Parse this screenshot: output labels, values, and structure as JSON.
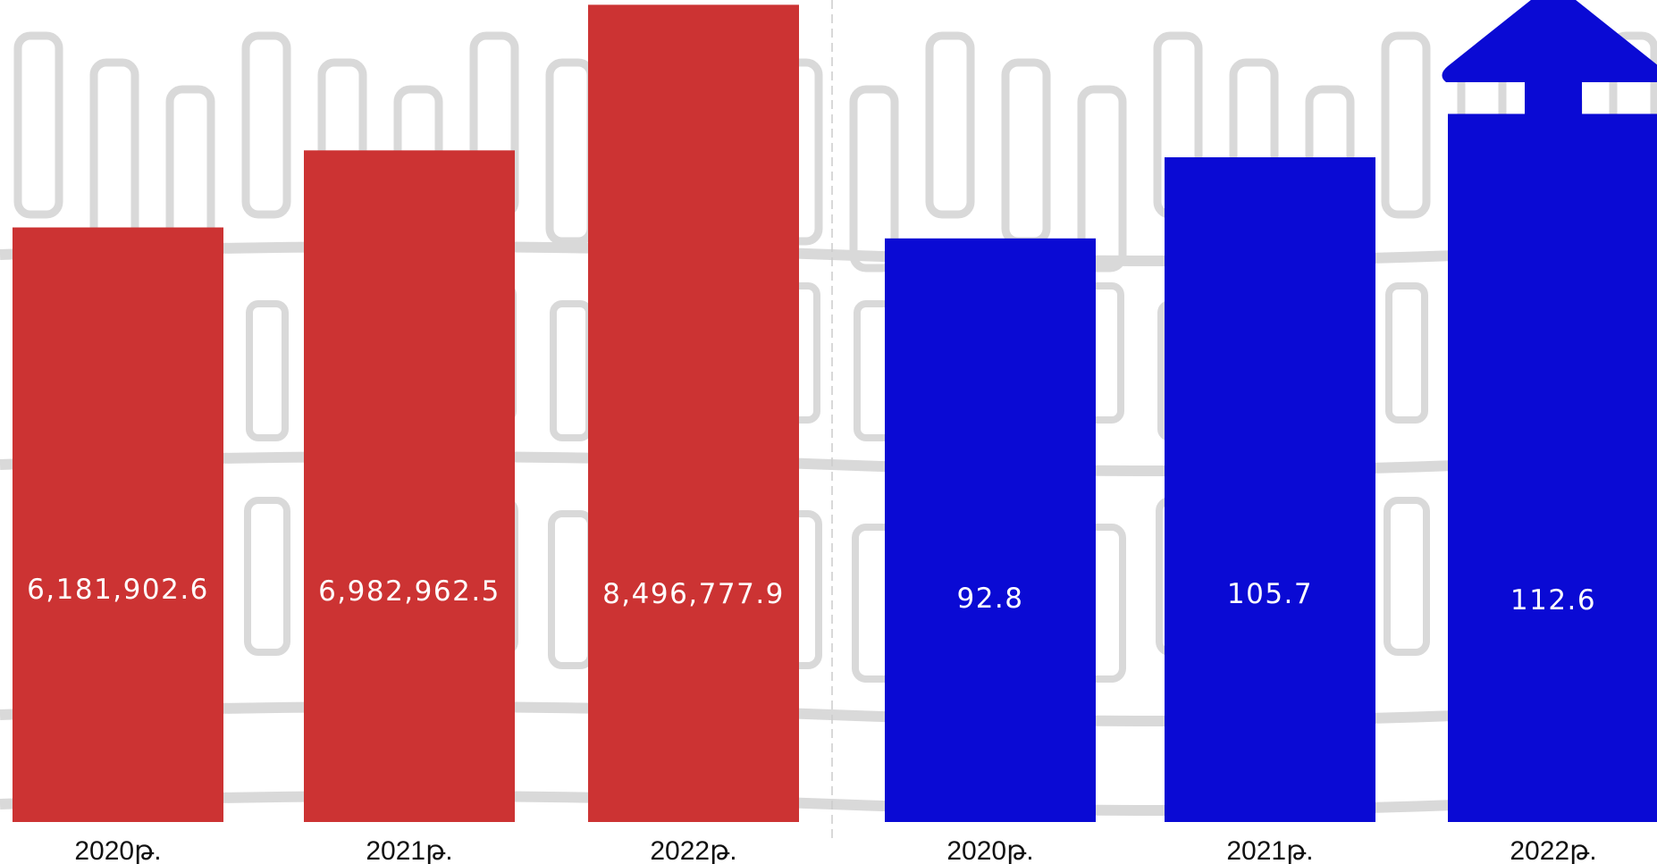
{
  "colors": {
    "left_bars": "#cc3333",
    "right_bars": "#0a0ad4",
    "bar_text": "#ffffff",
    "tick_text": "#111111",
    "background_sketch": "#d9d9d9"
  },
  "chart_data": [
    {
      "type": "bar",
      "categories": [
        "2020թ.",
        "2021թ.",
        "2022թ."
      ],
      "values": [
        6181902.6,
        6982962.5,
        8496777.9
      ],
      "value_labels": [
        "6,181,902.6",
        "6,982,962.5",
        "8,496,777.9"
      ],
      "color": "#cc3333",
      "ylim": [
        0,
        8500000
      ],
      "grid": false,
      "title": "",
      "xlabel": "",
      "ylabel": ""
    },
    {
      "type": "bar",
      "categories": [
        "2020թ.",
        "2021թ.",
        "2022թ."
      ],
      "values": [
        92.8,
        105.7,
        112.6
      ],
      "value_labels": [
        "92.8",
        "105.7",
        "112.6"
      ],
      "color": "#0a0ad4",
      "ylim": [
        0,
        130
      ],
      "grid": false,
      "annotation": "upward arrow above last bar",
      "title": "",
      "xlabel": "",
      "ylabel": ""
    }
  ]
}
